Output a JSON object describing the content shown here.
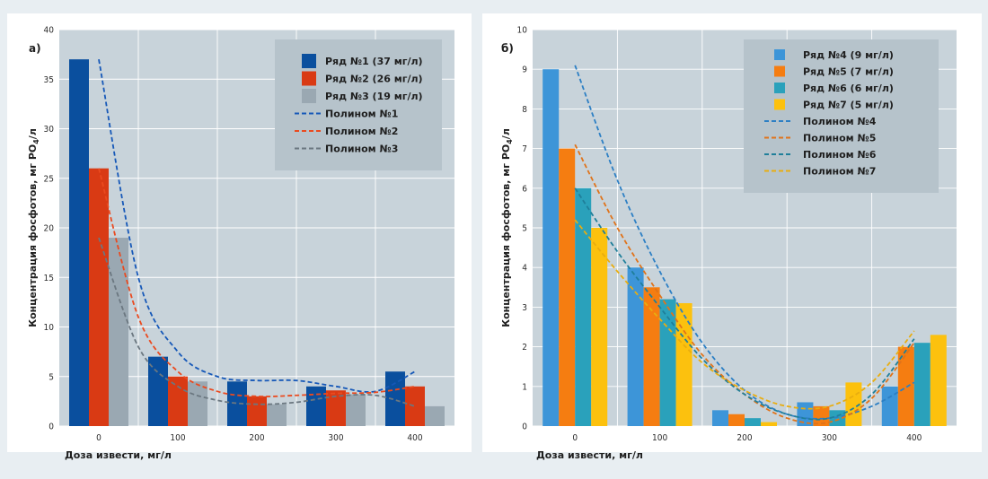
{
  "chart_data": [
    {
      "type": "bar",
      "panel_label": "а)",
      "xlabel": "Доза извести, мг/л",
      "ylabel": "Концентрация фосфотов, мг PO4/л",
      "ylabel_parts": {
        "main": "Концентрация фосфотов, мг PO",
        "sub": "4",
        "tail": "/л"
      },
      "categories": [
        "0",
        "100",
        "200",
        "300",
        "400"
      ],
      "ylim": [
        0,
        40
      ],
      "yticks": [
        "0",
        "5",
        "10",
        "15",
        "20",
        "25",
        "30",
        "35",
        "40"
      ],
      "grid": true,
      "legend_position": "top-right",
      "series": [
        {
          "name": "Ряд №1 (37 мг/л)",
          "color": "#0a4f9e",
          "values": [
            37,
            7,
            4.5,
            4,
            5.5
          ]
        },
        {
          "name": "Ряд №2 (26 мг/л)",
          "color": "#d93a14",
          "values": [
            26,
            5,
            3,
            3.6,
            4
          ]
        },
        {
          "name": "Ряд №3 (19 мг/л)",
          "color": "#9aa8b2",
          "values": [
            19,
            4.5,
            2.2,
            3.2,
            2
          ]
        }
      ],
      "trendlines": [
        {
          "name": "Полином №1",
          "color": "#1658b8",
          "points": [
            [
              0,
              37
            ],
            [
              50,
              15
            ],
            [
              100,
              7.5
            ],
            [
              150,
              5
            ],
            [
              200,
              4.6
            ],
            [
              250,
              4.6
            ],
            [
              300,
              4
            ],
            [
              350,
              3.5
            ],
            [
              400,
              5.5
            ]
          ]
        },
        {
          "name": "Полином №2",
          "color": "#ea4a1f",
          "points": [
            [
              0,
              26
            ],
            [
              50,
              11
            ],
            [
              100,
              5.5
            ],
            [
              150,
              3.5
            ],
            [
              200,
              3
            ],
            [
              250,
              3.1
            ],
            [
              300,
              3.3
            ],
            [
              350,
              3.4
            ],
            [
              400,
              4
            ]
          ]
        },
        {
          "name": "Полином №3",
          "color": "#6b7780",
          "points": [
            [
              0,
              19
            ],
            [
              50,
              8
            ],
            [
              100,
              4
            ],
            [
              150,
              2.6
            ],
            [
              200,
              2.2
            ],
            [
              250,
              2.4
            ],
            [
              300,
              3
            ],
            [
              350,
              3.1
            ],
            [
              400,
              2
            ]
          ]
        }
      ]
    },
    {
      "type": "bar",
      "panel_label": "б)",
      "xlabel": "Доза извести, мг/л",
      "ylabel": "Концентрация фосфотов, мг PO4/л",
      "ylabel_parts": {
        "main": "Концентрация фосфотов, мг PO",
        "sub": "4",
        "tail": "/л"
      },
      "categories": [
        "0",
        "100",
        "200",
        "300",
        "400"
      ],
      "ylim": [
        0,
        10
      ],
      "yticks": [
        "0",
        "1",
        "2",
        "3",
        "4",
        "5",
        "6",
        "7",
        "8",
        "9",
        "10"
      ],
      "grid": true,
      "legend_position": "top-right",
      "series": [
        {
          "name": "Ряд №4 (9 мг/л)",
          "color": "#3d95d8",
          "values": [
            9,
            4,
            0.4,
            0.6,
            1
          ]
        },
        {
          "name": "Ряд №5 (7 мг/л)",
          "color": "#f57d11",
          "values": [
            7,
            3.5,
            0.3,
            0.5,
            2
          ]
        },
        {
          "name": "Ряд №6 (6 мг/л)",
          "color": "#2aa1bb",
          "values": [
            6,
            3.2,
            0.2,
            0.4,
            2.1
          ]
        },
        {
          "name": "Ряд №7 (5 мг/л)",
          "color": "#fcc10e",
          "values": [
            5,
            3.1,
            0.1,
            1.1,
            2.3
          ]
        }
      ],
      "trendlines": [
        {
          "name": "Полином №4",
          "color": "#2c7fc4",
          "points": [
            [
              0,
              9.1
            ],
            [
              50,
              6.2
            ],
            [
              100,
              3.9
            ],
            [
              150,
              2.1
            ],
            [
              200,
              0.9
            ],
            [
              250,
              0.3
            ],
            [
              300,
              0.2
            ],
            [
              350,
              0.5
            ],
            [
              400,
              1.1
            ]
          ]
        },
        {
          "name": "Полином №5",
          "color": "#e0731a",
          "points": [
            [
              0,
              7.1
            ],
            [
              50,
              5
            ],
            [
              100,
              3.3
            ],
            [
              150,
              1.8
            ],
            [
              200,
              0.8
            ],
            [
              250,
              0.2
            ],
            [
              300,
              0.1
            ],
            [
              350,
              0.7
            ],
            [
              400,
              2.1
            ]
          ]
        },
        {
          "name": "Полином №6",
          "color": "#1f7f9a",
          "points": [
            [
              0,
              6
            ],
            [
              50,
              4.4
            ],
            [
              100,
              3
            ],
            [
              150,
              1.7
            ],
            [
              200,
              0.8
            ],
            [
              250,
              0.3
            ],
            [
              300,
              0.2
            ],
            [
              350,
              0.8
            ],
            [
              400,
              2.2
            ]
          ]
        },
        {
          "name": "Полином №7",
          "color": "#e8ad10",
          "points": [
            [
              0,
              5.2
            ],
            [
              50,
              3.9
            ],
            [
              100,
              2.7
            ],
            [
              150,
              1.6
            ],
            [
              200,
              0.9
            ],
            [
              250,
              0.5
            ],
            [
              300,
              0.5
            ],
            [
              350,
              1.1
            ],
            [
              400,
              2.4
            ]
          ]
        }
      ]
    }
  ]
}
